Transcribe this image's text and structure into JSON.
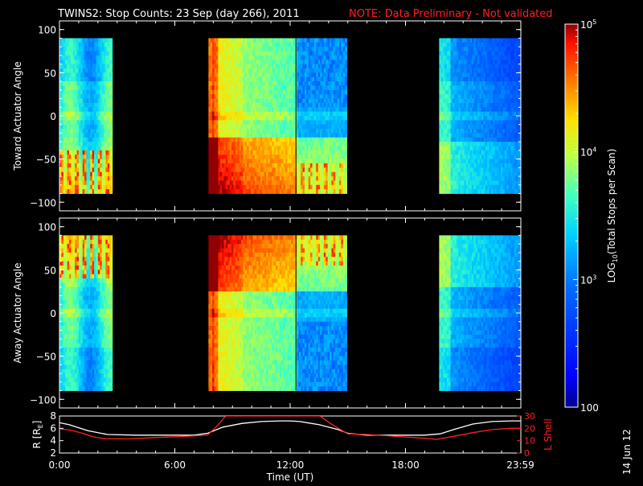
{
  "header": {
    "title": "TWINS2: Stop Counts: 23 Sep (day 266), 2011",
    "note": "NOTE: Data Preliminary - Not validated"
  },
  "colors": {
    "background": "#000000",
    "axes": "#ffffff",
    "note": "#ff2020",
    "l_shell_line": "#ff2020",
    "r_line": "#ffffff"
  },
  "colorbar": {
    "label": "LOG10(Total Stops per Scan)",
    "label_main": "LOG",
    "label_sub": "10",
    "label_rest": "(Total Stops per Scan)",
    "ticks": [
      "100",
      "10^3",
      "10^4",
      "10^5"
    ],
    "tick_labels": [
      "100",
      "10",
      "10",
      "10"
    ],
    "tick_exps": [
      "",
      "3",
      "4",
      "5"
    ],
    "range": [
      2,
      5
    ],
    "scale": "log"
  },
  "stamp": "14 Jun 12",
  "chart_data": [
    {
      "type": "heatmap",
      "ylabel": "Toward Actuator Angle",
      "ylim": [
        -110,
        110
      ],
      "yticks": [
        100,
        50,
        0,
        -50,
        -100
      ],
      "ytick_labels": [
        "100",
        "50",
        "0",
        "−50",
        "−100"
      ],
      "xlim": [
        0,
        24
      ],
      "data_segments_hours": [
        [
          0.0,
          2.75
        ],
        [
          7.75,
          14.95
        ],
        [
          19.75,
          24.0
        ]
      ],
      "angle_range": [
        -90,
        90
      ]
    },
    {
      "type": "heatmap",
      "ylabel": "Away Actuator Angle",
      "ylim": [
        -110,
        110
      ],
      "yticks": [
        100,
        50,
        0,
        -50,
        -100
      ],
      "ytick_labels": [
        "100",
        "50",
        "0",
        "−50",
        "−100"
      ],
      "xlim": [
        0,
        24
      ],
      "data_segments_hours": [
        [
          0.0,
          2.75
        ],
        [
          7.75,
          14.95
        ],
        [
          19.75,
          24.0
        ]
      ],
      "angle_range": [
        -90,
        90
      ]
    },
    {
      "type": "line",
      "ylabel_left": "R [RE]",
      "ylabel_left_main": "R [R",
      "ylabel_left_sub": "E",
      "ylabel_left_end": "]",
      "ylabel_right": "L Shell",
      "ylim_left": [
        2,
        8
      ],
      "yticks_left": [
        "2",
        "4",
        "6",
        "8"
      ],
      "ylim_right": [
        0,
        30
      ],
      "yticks_right": [
        "0",
        "10",
        "20",
        "30"
      ],
      "xlabel": "Time (UT)",
      "xticks": [
        "0:00",
        "6:00",
        "12:00",
        "18:00",
        "23:59"
      ],
      "xtick_hours": [
        0,
        6,
        12,
        18,
        23.98
      ],
      "series": [
        {
          "name": "R",
          "color": "#ffffff",
          "x": [
            0,
            0.5,
            1.0,
            1.5,
            2.5,
            4,
            5,
            6,
            7,
            7.7,
            8.5,
            9.5,
            10.5,
            11.5,
            12,
            12.5,
            13.5,
            14.5,
            15,
            16,
            17,
            18,
            19,
            19.8,
            20.5,
            21.5,
            22.5,
            23.5,
            24
          ],
          "y": [
            6.9,
            6.6,
            6.1,
            5.6,
            5.0,
            4.9,
            4.9,
            4.9,
            4.9,
            5.2,
            6.2,
            6.8,
            7.1,
            7.2,
            7.2,
            7.1,
            6.6,
            5.8,
            5.2,
            4.9,
            4.9,
            4.9,
            4.9,
            5.1,
            5.8,
            6.7,
            7.1,
            7.2,
            7.2
          ]
        },
        {
          "name": "L Shell",
          "color": "#ff2020",
          "x": [
            0,
            0.6,
            1.2,
            1.8,
            2.4,
            3.5,
            5,
            6.5,
            7.7,
            8.2,
            8.65,
            13.55,
            14.0,
            14.5,
            15.0,
            16,
            17,
            18,
            19,
            19.6,
            20.5,
            21.5,
            22.5,
            23.5,
            24
          ],
          "y": [
            19.5,
            18.5,
            16,
            13,
            11.5,
            11.5,
            12.5,
            13.5,
            14.5,
            22,
            30,
            30,
            25,
            20,
            15.5,
            15,
            14,
            13,
            12,
            11,
            13.5,
            16.5,
            19,
            20,
            20
          ]
        }
      ]
    }
  ]
}
